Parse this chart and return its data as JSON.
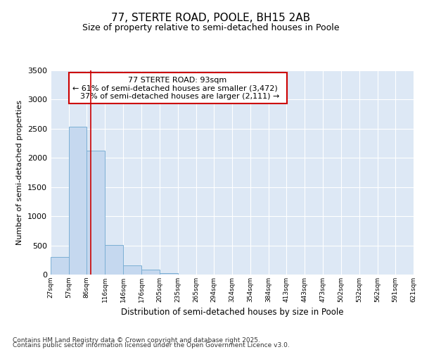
{
  "title": "77, STERTE ROAD, POOLE, BH15 2AB",
  "subtitle": "Size of property relative to semi-detached houses in Poole",
  "xlabel": "Distribution of semi-detached houses by size in Poole",
  "ylabel": "Number of semi-detached properties",
  "property_label": "77 STERTE ROAD: 93sqm",
  "pct_smaller": "61% of semi-detached houses are smaller (3,472)",
  "pct_larger": "37% of semi-detached houses are larger (2,111)",
  "property_sqm": 93,
  "bar_left_edges": [
    27,
    57,
    86,
    116,
    146,
    176,
    205,
    235,
    265,
    294,
    324,
    354,
    384,
    413,
    443,
    473,
    502,
    532,
    562,
    591
  ],
  "bar_widths": [
    30,
    29,
    30,
    30,
    30,
    29,
    30,
    30,
    29,
    30,
    30,
    30,
    29,
    30,
    30,
    29,
    30,
    30,
    29,
    30
  ],
  "bar_heights": [
    300,
    2530,
    2120,
    510,
    155,
    90,
    30,
    0,
    0,
    0,
    0,
    0,
    0,
    0,
    0,
    0,
    0,
    0,
    0,
    0
  ],
  "tick_labels": [
    "27sqm",
    "57sqm",
    "86sqm",
    "116sqm",
    "146sqm",
    "176sqm",
    "205sqm",
    "235sqm",
    "265sqm",
    "294sqm",
    "324sqm",
    "354sqm",
    "384sqm",
    "413sqm",
    "443sqm",
    "473sqm",
    "502sqm",
    "532sqm",
    "562sqm",
    "591sqm",
    "621sqm"
  ],
  "ylim": [
    0,
    3500
  ],
  "yticks": [
    0,
    500,
    1000,
    1500,
    2000,
    2500,
    3000,
    3500
  ],
  "bar_color": "#c5d8ef",
  "bar_edge_color": "#7bafd4",
  "vline_color": "#cc0000",
  "vline_x": 93,
  "bg_color": "#dde8f5",
  "annotation_box_color": "#cc0000",
  "grid_color": "#ffffff",
  "footer_line1": "Contains HM Land Registry data © Crown copyright and database right 2025.",
  "footer_line2": "Contains public sector information licensed under the Open Government Licence v3.0."
}
